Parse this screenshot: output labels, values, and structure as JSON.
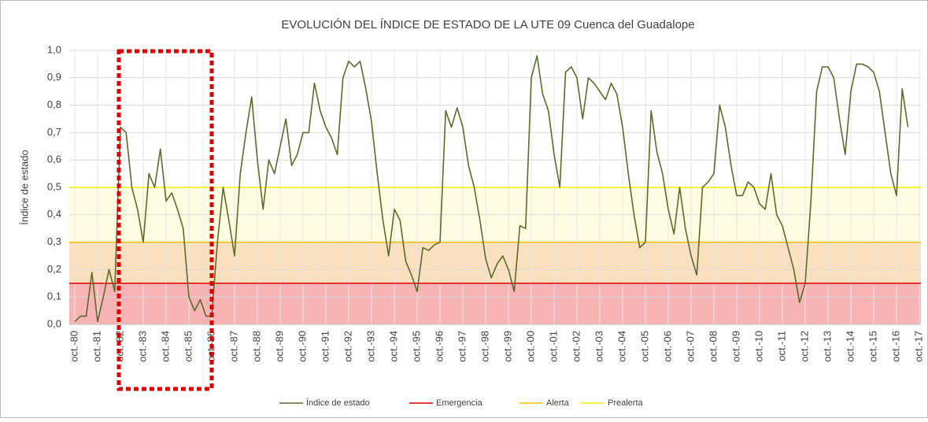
{
  "chart_data": {
    "type": "line",
    "title": "EVOLUCIÓN DEL ÍNDICE DE ESTADO DE LA UTE 09 Cuenca del Guadalope",
    "y_label": "Índice de estado",
    "categories": [
      "oct.-80",
      null,
      null,
      null,
      "oct.-81",
      null,
      null,
      null,
      "oct.-82",
      null,
      null,
      null,
      "oct.-83",
      null,
      null,
      null,
      "oct.-84",
      null,
      null,
      null,
      "oct.-85",
      null,
      null,
      null,
      "oct.-86",
      null,
      null,
      null,
      "oct.-87",
      null,
      null,
      null,
      "oct.-88",
      null,
      null,
      null,
      "oct.-89",
      null,
      null,
      null,
      "oct.-90",
      null,
      null,
      null,
      "oct.-91",
      null,
      null,
      null,
      "oct.-92",
      null,
      null,
      null,
      "oct.-93",
      null,
      null,
      null,
      "oct.-94",
      null,
      null,
      null,
      "oct.-95",
      null,
      null,
      null,
      "oct.-96",
      null,
      null,
      null,
      "oct.-97",
      null,
      null,
      null,
      "oct.-98",
      null,
      null,
      null,
      "oct.-99",
      null,
      null,
      null,
      "oct.-00",
      null,
      null,
      null,
      "oct.-01",
      null,
      null,
      null,
      "oct.-02",
      null,
      null,
      null,
      "oct.-03",
      null,
      null,
      null,
      "oct.-04",
      null,
      null,
      null,
      "oct.-05",
      null,
      null,
      null,
      "oct.-06",
      null,
      null,
      null,
      "oct.-07",
      null,
      null,
      null,
      "oct.-08",
      null,
      null,
      null,
      "oct.-09",
      null,
      null,
      null,
      "oct.-10",
      null,
      null,
      null,
      "oct.-11",
      null,
      null,
      null,
      "oct.-12",
      null,
      null,
      null,
      "oct.-13",
      null,
      null,
      null,
      "oct.-14",
      null,
      null,
      null,
      "oct.-15",
      null,
      null,
      null,
      "oct.-16",
      null,
      null,
      null,
      "oct.-17"
    ],
    "series": [
      {
        "name": "Índice de estado",
        "color": "#5a6b2a",
        "values": [
          0.01,
          0.03,
          0.03,
          0.19,
          0.01,
          0.1,
          0.2,
          0.12,
          0.72,
          0.7,
          0.5,
          0.42,
          0.3,
          0.55,
          0.5,
          0.64,
          0.45,
          0.48,
          0.42,
          0.35,
          0.1,
          0.05,
          0.09,
          0.03,
          0.03,
          0.3,
          0.5,
          0.38,
          0.25,
          0.55,
          0.7,
          0.83,
          0.6,
          0.42,
          0.6,
          0.55,
          0.65,
          0.75,
          0.58,
          0.62,
          0.7,
          0.7,
          0.88,
          0.78,
          0.72,
          0.68,
          0.62,
          0.9,
          0.96,
          0.94,
          0.96,
          0.86,
          0.74,
          0.55,
          0.38,
          0.25,
          0.42,
          0.38,
          0.23,
          0.18,
          0.12,
          0.28,
          0.27,
          0.29,
          0.3,
          0.78,
          0.72,
          0.79,
          0.72,
          0.58,
          0.5,
          0.38,
          0.24,
          0.17,
          0.22,
          0.25,
          0.2,
          0.12,
          0.36,
          0.35,
          0.9,
          0.98,
          0.84,
          0.78,
          0.62,
          0.5,
          0.92,
          0.94,
          0.9,
          0.75,
          0.9,
          0.88,
          0.85,
          0.82,
          0.88,
          0.84,
          0.72,
          0.55,
          0.4,
          0.28,
          0.3,
          0.78,
          0.63,
          0.55,
          0.42,
          0.33,
          0.5,
          0.35,
          0.25,
          0.18,
          0.5,
          0.52,
          0.55,
          0.8,
          0.72,
          0.58,
          0.47,
          0.47,
          0.52,
          0.5,
          0.44,
          0.42,
          0.55,
          0.4,
          0.36,
          0.28,
          0.2,
          0.08,
          0.15,
          0.45,
          0.85,
          0.94,
          0.94,
          0.9,
          0.75,
          0.62,
          0.85,
          0.95,
          0.95,
          0.94,
          0.92,
          0.85,
          0.7,
          0.55,
          0.47,
          0.86,
          0.72,
          null,
          null
        ]
      }
    ],
    "thresholds": [
      {
        "name": "Emergencia",
        "value": 0.15,
        "color": "#e00000",
        "band_color": "#f8b4b4"
      },
      {
        "name": "Alerta",
        "value": 0.3,
        "color": "#f0c000",
        "band_color": "#fbe0c0"
      },
      {
        "name": "Prealerta",
        "value": 0.5,
        "color": "#f2f200",
        "band_color": "#fdfce2"
      }
    ],
    "ylim": [
      0,
      1
    ],
    "yticks": [
      {
        "value": 0,
        "label": "0,0"
      },
      {
        "value": 0.1,
        "label": "0,1"
      },
      {
        "value": 0.2,
        "label": "0,2"
      },
      {
        "value": 0.3,
        "label": "0,3"
      },
      {
        "value": 0.4,
        "label": "0,4"
      },
      {
        "value": 0.5,
        "label": "0,5"
      },
      {
        "value": 0.6,
        "label": "0,6"
      },
      {
        "value": 0.7,
        "label": "0,7"
      },
      {
        "value": 0.8,
        "label": "0,8"
      },
      {
        "value": 0.9,
        "label": "0,9"
      },
      {
        "value": 1,
        "label": "1,0"
      }
    ],
    "grid": true,
    "legend": "bottom"
  }
}
